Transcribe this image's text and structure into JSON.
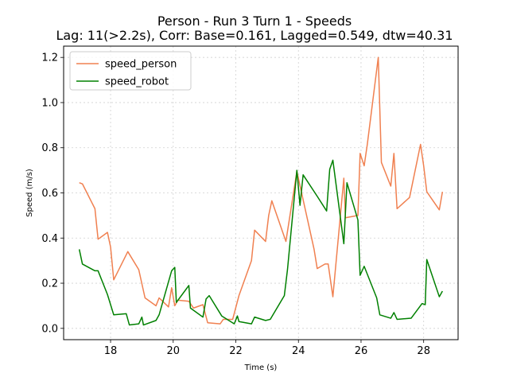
{
  "chart_data": {
    "type": "line",
    "title": "Person - Run 3 Turn 1 - Speeds",
    "subtitle": "Lag: 11(>2.2s), Corr: Base=0.161, Lagged=0.549, dtw=40.31",
    "xlabel": "Time (s)",
    "ylabel": "Speed (m/s)",
    "xlim": [
      16.5,
      29.1
    ],
    "ylim": [
      -0.05,
      1.25
    ],
    "xticks": [
      18,
      20,
      22,
      24,
      26,
      28
    ],
    "yticks": [
      0.0,
      0.2,
      0.4,
      0.6,
      0.8,
      1.0,
      1.2
    ],
    "grid": true,
    "legend_position": "upper-left",
    "series": [
      {
        "name": "speed_person",
        "color": "#f08050",
        "points": [
          [
            17.0,
            0.645
          ],
          [
            17.1,
            0.64
          ],
          [
            17.5,
            0.53
          ],
          [
            17.6,
            0.395
          ],
          [
            17.9,
            0.425
          ],
          [
            18.0,
            0.36
          ],
          [
            18.1,
            0.215
          ],
          [
            18.55,
            0.34
          ],
          [
            18.9,
            0.26
          ],
          [
            19.1,
            0.135
          ],
          [
            19.45,
            0.1
          ],
          [
            19.55,
            0.135
          ],
          [
            19.85,
            0.095
          ],
          [
            19.95,
            0.18
          ],
          [
            20.05,
            0.1
          ],
          [
            20.15,
            0.125
          ],
          [
            20.5,
            0.12
          ],
          [
            20.65,
            0.09
          ],
          [
            20.95,
            0.105
          ],
          [
            21.1,
            0.025
          ],
          [
            21.5,
            0.02
          ],
          [
            21.6,
            0.04
          ],
          [
            21.9,
            0.04
          ],
          [
            22.1,
            0.145
          ],
          [
            22.5,
            0.3
          ],
          [
            22.6,
            0.435
          ],
          [
            22.95,
            0.385
          ],
          [
            23.05,
            0.5
          ],
          [
            23.15,
            0.565
          ],
          [
            23.6,
            0.385
          ],
          [
            23.95,
            0.695
          ],
          [
            24.5,
            0.35
          ],
          [
            24.6,
            0.265
          ],
          [
            24.85,
            0.285
          ],
          [
            24.95,
            0.285
          ],
          [
            25.1,
            0.14
          ],
          [
            25.45,
            0.665
          ],
          [
            25.5,
            0.49
          ],
          [
            25.9,
            0.5
          ],
          [
            25.97,
            0.775
          ],
          [
            26.1,
            0.72
          ],
          [
            26.2,
            0.815
          ],
          [
            26.55,
            1.2
          ],
          [
            26.65,
            0.735
          ],
          [
            26.95,
            0.63
          ],
          [
            27.05,
            0.775
          ],
          [
            27.15,
            0.53
          ],
          [
            27.55,
            0.58
          ],
          [
            27.9,
            0.815
          ],
          [
            28.0,
            0.72
          ],
          [
            28.1,
            0.605
          ],
          [
            28.5,
            0.525
          ],
          [
            28.6,
            0.605
          ]
        ]
      },
      {
        "name": "speed_robot",
        "color": "#008000",
        "points": [
          [
            17.0,
            0.35
          ],
          [
            17.1,
            0.285
          ],
          [
            17.5,
            0.255
          ],
          [
            17.6,
            0.255
          ],
          [
            17.9,
            0.15
          ],
          [
            18.1,
            0.06
          ],
          [
            18.5,
            0.065
          ],
          [
            18.6,
            0.015
          ],
          [
            18.9,
            0.02
          ],
          [
            19.0,
            0.05
          ],
          [
            19.05,
            0.015
          ],
          [
            19.45,
            0.035
          ],
          [
            19.55,
            0.06
          ],
          [
            19.95,
            0.255
          ],
          [
            20.05,
            0.27
          ],
          [
            20.1,
            0.115
          ],
          [
            20.5,
            0.19
          ],
          [
            20.55,
            0.09
          ],
          [
            20.95,
            0.05
          ],
          [
            21.05,
            0.13
          ],
          [
            21.15,
            0.145
          ],
          [
            21.55,
            0.055
          ],
          [
            21.95,
            0.02
          ],
          [
            22.05,
            0.055
          ],
          [
            22.1,
            0.03
          ],
          [
            22.5,
            0.02
          ],
          [
            22.6,
            0.05
          ],
          [
            22.95,
            0.035
          ],
          [
            23.1,
            0.04
          ],
          [
            23.55,
            0.145
          ],
          [
            23.65,
            0.26
          ],
          [
            23.95,
            0.7
          ],
          [
            24.05,
            0.545
          ],
          [
            24.15,
            0.68
          ],
          [
            24.6,
            0.585
          ],
          [
            24.9,
            0.52
          ],
          [
            25.0,
            0.705
          ],
          [
            25.1,
            0.745
          ],
          [
            25.45,
            0.375
          ],
          [
            25.55,
            0.645
          ],
          [
            25.9,
            0.48
          ],
          [
            25.97,
            0.235
          ],
          [
            26.1,
            0.275
          ],
          [
            26.5,
            0.135
          ],
          [
            26.6,
            0.06
          ],
          [
            26.95,
            0.045
          ],
          [
            27.05,
            0.07
          ],
          [
            27.15,
            0.04
          ],
          [
            27.6,
            0.045
          ],
          [
            27.95,
            0.11
          ],
          [
            28.05,
            0.105
          ],
          [
            28.1,
            0.305
          ],
          [
            28.5,
            0.14
          ],
          [
            28.6,
            0.165
          ]
        ]
      }
    ]
  }
}
